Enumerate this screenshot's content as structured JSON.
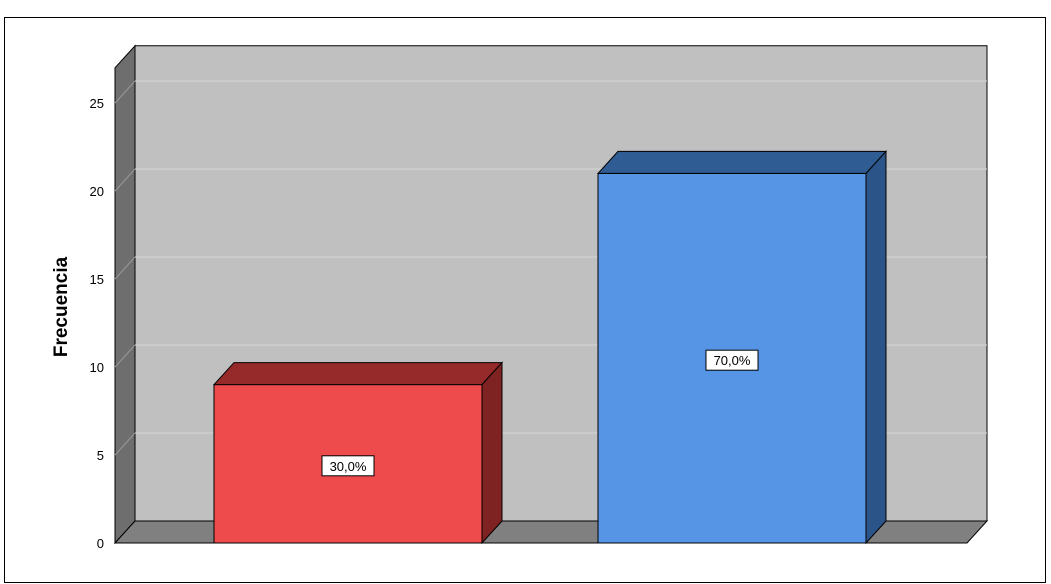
{
  "chart_data": {
    "type": "bar",
    "title": "",
    "xlabel": "",
    "ylabel": "Frecuencia",
    "ylim": [
      0,
      27
    ],
    "yticks": [
      0,
      5,
      10,
      15,
      20,
      25
    ],
    "grid": true,
    "categories": [
      "",
      ""
    ],
    "values": [
      9,
      21
    ],
    "value_labels": [
      "30,0%",
      "70,0%"
    ],
    "colors": {
      "bar1_front": "#ee4b4d",
      "bar1_top": "#962a2a",
      "bar1_side": "#7e2222",
      "bar2_front": "#5694e6",
      "bar2_top": "#2f5c92",
      "bar2_side": "#2b5488",
      "plot_bg": "#c0c0c0",
      "wall_side": "#6e6e6e",
      "floor": "#808080",
      "gridline": "#d6d6d6"
    }
  }
}
